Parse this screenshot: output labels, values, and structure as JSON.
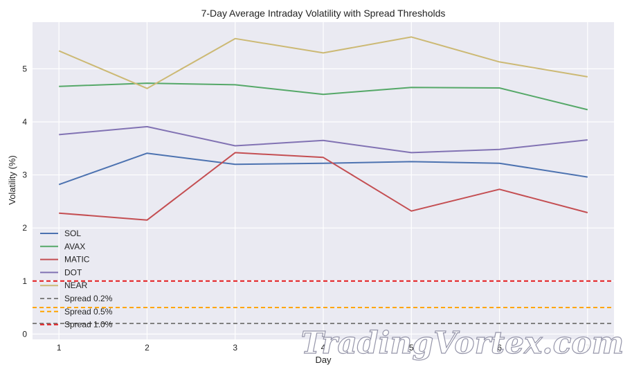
{
  "chart_data": {
    "type": "line",
    "title": "7-Day Average Intraday Volatility with Spread Thresholds",
    "xlabel": "Day",
    "ylabel": "Volatility (%)",
    "x": [
      1,
      2,
      3,
      4,
      5,
      6,
      7
    ],
    "xlim": [
      0.7,
      7.3
    ],
    "ylim": [
      -0.1,
      5.88
    ],
    "yticks": [
      0,
      1,
      2,
      3,
      4,
      5
    ],
    "grid": true,
    "legend_position": "lower-left",
    "series": [
      {
        "name": "SOL",
        "color": "#4c72b0",
        "values": [
          2.82,
          3.41,
          3.2,
          3.22,
          3.25,
          3.22,
          2.96
        ]
      },
      {
        "name": "AVAX",
        "color": "#55a868",
        "values": [
          4.67,
          4.73,
          4.7,
          4.52,
          4.65,
          4.64,
          4.23
        ]
      },
      {
        "name": "MATIC",
        "color": "#c44e52",
        "values": [
          2.28,
          2.15,
          3.42,
          3.33,
          2.32,
          2.73,
          2.29
        ]
      },
      {
        "name": "DOT",
        "color": "#8172b3",
        "values": [
          3.76,
          3.91,
          3.55,
          3.65,
          3.42,
          3.48,
          3.66
        ]
      },
      {
        "name": "NEAR",
        "color": "#ccb974",
        "values": [
          5.34,
          4.63,
          5.57,
          5.3,
          5.6,
          5.13,
          4.85
        ]
      }
    ],
    "thresholds": [
      {
        "name": "Spread 0.2%",
        "value": 0.2,
        "color": "#808080"
      },
      {
        "name": "Spread 0.5%",
        "value": 0.5,
        "color": "#ffa500"
      },
      {
        "name": "Spread 1.0%",
        "value": 1.0,
        "color": "#e41a1c"
      }
    ]
  },
  "watermark": "TradingVortex.com"
}
